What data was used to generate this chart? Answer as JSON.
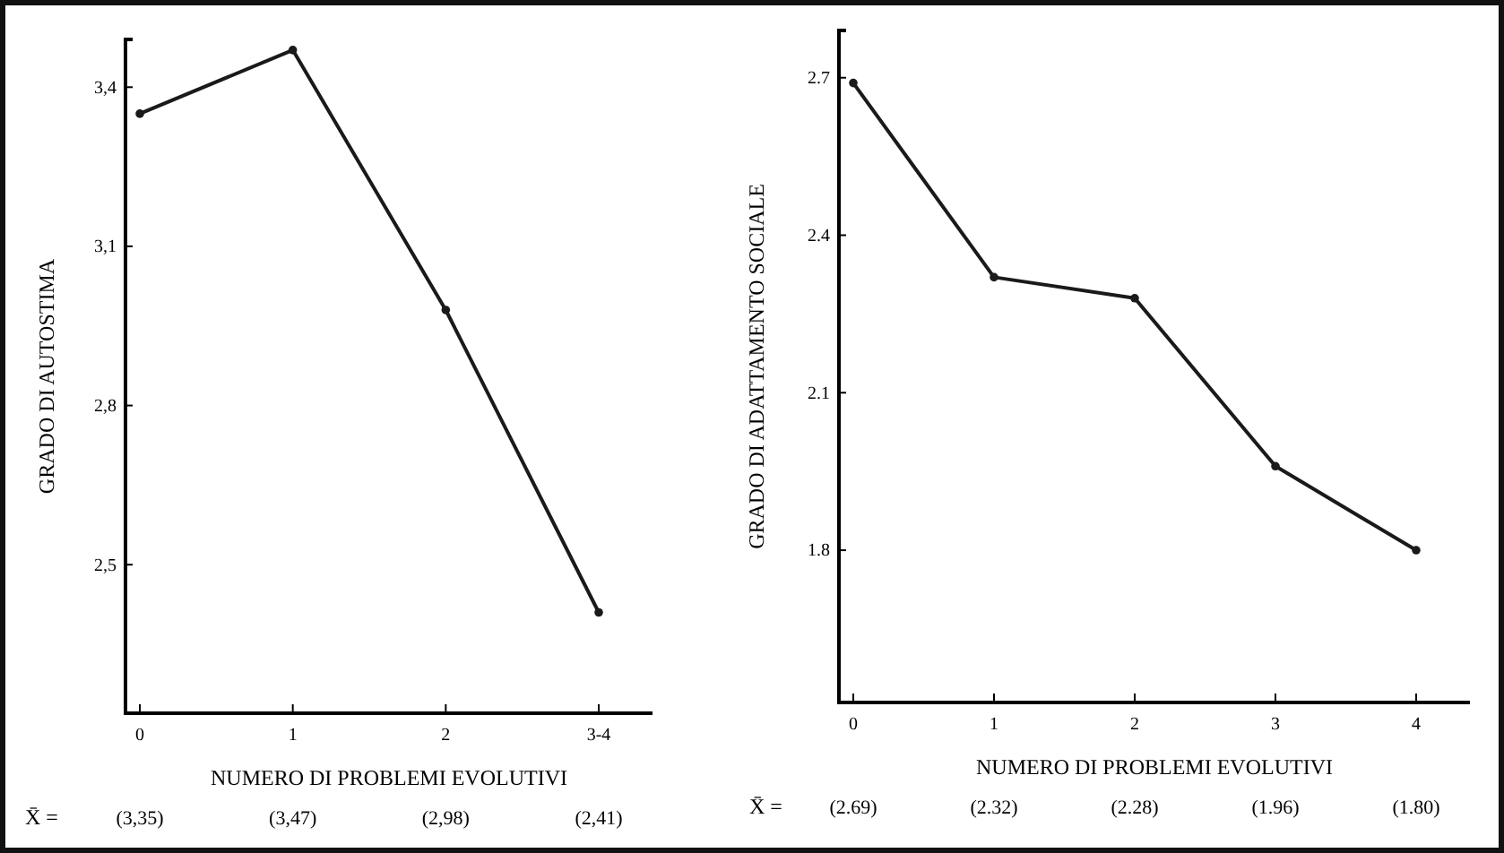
{
  "chart_data": [
    {
      "type": "line",
      "categories": [
        "0",
        "1",
        "2",
        "3-4"
      ],
      "ylabel": "GRADO DI AUTOSTIMA",
      "xlabel": "NUMERO DI PROBLEMI EVOLUTIVI",
      "series": [
        {
          "color": "#1a1a1a",
          "values": [
            3.35,
            3.47,
            2.98,
            2.41
          ],
          "value_labels": [
            "(3,35)",
            "(3,47)",
            "(2,98)",
            "(2,41)"
          ]
        }
      ],
      "ylim": [
        2.22,
        3.49
      ],
      "yticks": [
        {
          "value": 2.5,
          "label": "2,5"
        },
        {
          "value": 2.8,
          "label": "2,8"
        },
        {
          "value": 3.1,
          "label": "3,1"
        },
        {
          "value": 3.4,
          "label": "3,4"
        }
      ],
      "marker": "circle",
      "grid": false,
      "annotations": [
        "X̄ ="
      ]
    },
    {
      "type": "line",
      "categories": [
        "0",
        "1",
        "2",
        "3",
        "4"
      ],
      "ylabel": "GRADO DI ADATTAMENTO SOCIALE",
      "xlabel": "NUMERO DI PROBLEMI EVOLUTIVI",
      "series": [
        {
          "color": "#1a1a1a",
          "values": [
            2.69,
            2.32,
            2.28,
            1.96,
            1.8
          ],
          "value_labels": [
            "(2.69)",
            "(2.32)",
            "(2.28)",
            "(1.96)",
            "(1.80)"
          ]
        }
      ],
      "ylim": [
        1.51,
        2.79
      ],
      "yticks": [
        1.8,
        2.1,
        2.4,
        2.7
      ],
      "marker": "circle",
      "grid": false,
      "annotations": [
        "X̄ ="
      ]
    }
  ]
}
